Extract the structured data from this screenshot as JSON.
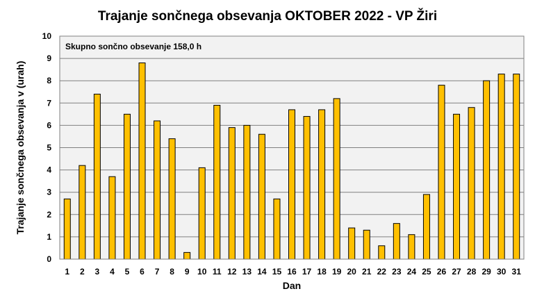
{
  "chart_data": {
    "type": "bar",
    "title": "Trajanje  sončnega  obsevanja  OKTOBER  2022 - VP Žiri",
    "xlabel": "Dan",
    "ylabel": "Trajanje  sončnega obsevanja  v (urah)",
    "annotation": "Skupno sončno obsevanje 158,0 h",
    "ylim": [
      0,
      10
    ],
    "yticks": [
      "0",
      "1",
      "2",
      "3",
      "4",
      "5",
      "6",
      "7",
      "8",
      "9",
      "10"
    ],
    "grid": true,
    "bar_color": "#FFC000",
    "bar_edge_color": "#000000",
    "plot_background": "#F2F2F2",
    "categories": [
      "1",
      "2",
      "3",
      "4",
      "5",
      "6",
      "7",
      "8",
      "9",
      "10",
      "11",
      "12",
      "13",
      "14",
      "15",
      "16",
      "17",
      "18",
      "19",
      "20",
      "21",
      "22",
      "23",
      "24",
      "25",
      "26",
      "27",
      "28",
      "29",
      "30",
      "31"
    ],
    "values": [
      2.7,
      4.2,
      7.4,
      3.7,
      6.5,
      8.8,
      6.2,
      5.4,
      0.3,
      4.1,
      6.9,
      5.9,
      6.0,
      5.6,
      2.7,
      6.7,
      6.4,
      6.7,
      7.2,
      1.4,
      1.3,
      0.6,
      1.6,
      1.1,
      2.9,
      7.8,
      6.5,
      6.8,
      8.0,
      8.3,
      8.3
    ]
  }
}
